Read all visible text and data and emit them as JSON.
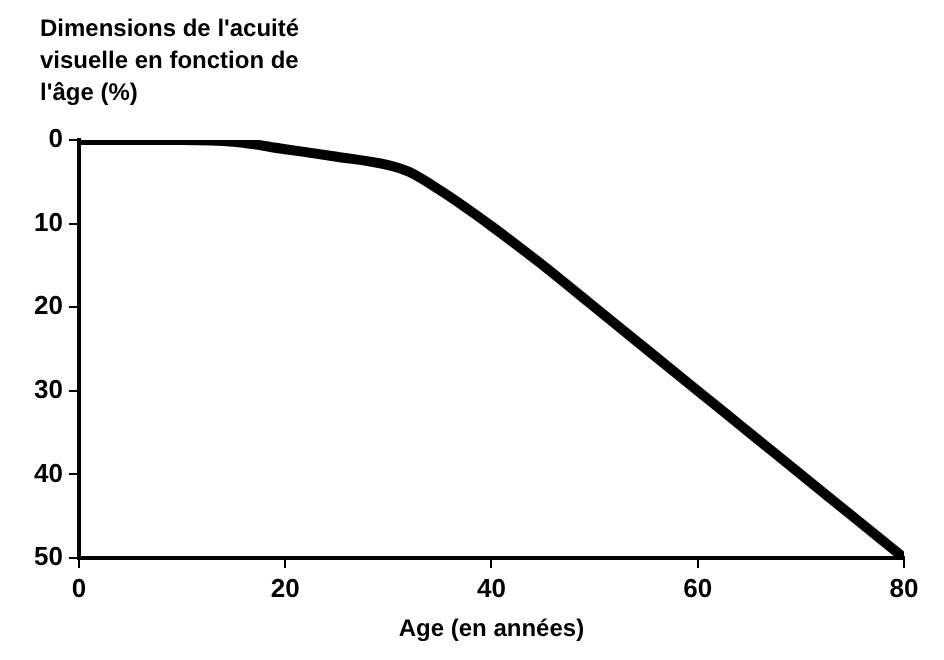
{
  "chart_data": {
    "type": "line",
    "title": "Dimensions de l'acuité visuelle en fonction de l'âge (%)",
    "xlabel": "Age (en années)",
    "x": [
      0,
      10,
      15,
      20,
      25,
      30,
      32,
      35,
      40,
      45,
      50,
      55,
      60,
      65,
      70,
      75,
      80
    ],
    "series": [
      {
        "color": "#000000",
        "values": [
          0,
          0,
          0.2,
          1.1,
          2,
          3,
          3.8,
          6,
          10.3,
          15,
          20,
          25,
          30,
          35,
          40,
          45,
          50
        ]
      }
    ],
    "xlim": [
      0,
      80
    ],
    "xticks": [
      0,
      20,
      40,
      60,
      80
    ],
    "ylim": [
      50,
      0
    ],
    "yticks": [
      0,
      10,
      20,
      30,
      40,
      50
    ],
    "grid": false,
    "legend": false,
    "marker": "none",
    "line_style": "solid"
  }
}
